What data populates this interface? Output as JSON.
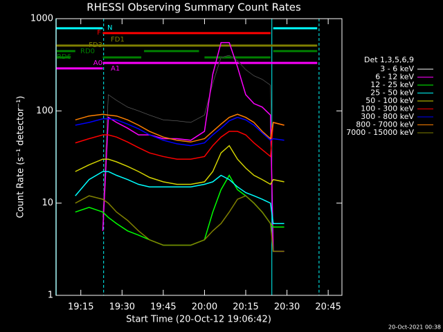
{
  "chart_data": {
    "type": "line",
    "title": "RHESSI Observing Summary Count Rates",
    "xlabel": "Start Time (20-Oct-12 19:06:42)",
    "ylabel": "Count Rate (s⁻¹ detector⁻¹)",
    "legend_title": "Det 1,3,5,6,9",
    "timestamp": "20-Oct-2021 00:38",
    "log_y": true,
    "xlim": [
      "19:06",
      "20:50"
    ],
    "ylim": [
      1,
      1000
    ],
    "xticks": [
      "19:15",
      "19:30",
      "19:45",
      "20:00",
      "20:15",
      "20:30",
      "20:45"
    ],
    "yticks": [
      1,
      10,
      100,
      1000
    ],
    "x": [
      "19:13",
      "19:18",
      "19:23",
      "19:25",
      "19:28",
      "19:32",
      "19:36",
      "19:40",
      "19:45",
      "19:50",
      "19:55",
      "20:00",
      "20:03",
      "20:06",
      "20:09",
      "20:12",
      "20:15",
      "20:18",
      "20:21",
      "20:24",
      "20:25",
      "20:29"
    ],
    "series": [
      {
        "name": "3 - 6 keV",
        "color": "#000000",
        "values": [
          null,
          null,
          7,
          150,
          130,
          110,
          100,
          90,
          80,
          78,
          75,
          90,
          200,
          380,
          400,
          350,
          280,
          240,
          220,
          190,
          3,
          3
        ]
      },
      {
        "name": "6 - 12 keV",
        "color": "#ff00ff",
        "values": [
          null,
          null,
          5,
          85,
          75,
          65,
          55,
          55,
          50,
          50,
          48,
          60,
          250,
          550,
          550,
          300,
          150,
          120,
          110,
          90,
          3,
          3
        ]
      },
      {
        "name": "12 - 25 keV",
        "color": "#00ff00",
        "values": [
          8,
          9,
          8,
          7,
          6,
          5,
          4.5,
          4,
          3.5,
          3.5,
          3.5,
          4,
          8,
          14,
          20,
          14,
          12,
          10,
          8,
          6,
          5.5,
          5.5
        ]
      },
      {
        "name": "25 - 50 keV",
        "color": "#00ffff",
        "values": [
          12,
          18,
          22,
          22,
          20,
          18,
          16,
          15,
          15,
          15,
          15,
          16,
          17,
          20,
          18,
          15,
          13,
          12,
          11,
          10,
          6,
          6
        ]
      },
      {
        "name": "50 - 100 keV",
        "color": "#d4d400",
        "values": [
          22,
          26,
          30,
          30,
          28,
          25,
          22,
          19,
          17,
          16,
          16,
          17,
          22,
          35,
          42,
          30,
          24,
          20,
          18,
          16,
          18,
          17
        ]
      },
      {
        "name": "100 - 300 keV",
        "color": "#ff0000",
        "values": [
          45,
          50,
          55,
          55,
          52,
          46,
          40,
          35,
          32,
          30,
          30,
          32,
          42,
          52,
          60,
          60,
          55,
          45,
          38,
          32,
          75,
          70
        ]
      },
      {
        "name": "300 - 800 keV",
        "color": "#0000ff",
        "values": [
          70,
          75,
          82,
          82,
          80,
          72,
          64,
          55,
          48,
          44,
          42,
          45,
          55,
          65,
          78,
          85,
          80,
          70,
          58,
          48,
          50,
          48
        ]
      },
      {
        "name": "800 - 7000 keV",
        "color": "#ff8000",
        "values": [
          80,
          88,
          92,
          90,
          88,
          80,
          70,
          60,
          52,
          48,
          46,
          50,
          60,
          72,
          85,
          92,
          85,
          75,
          60,
          50,
          75,
          70
        ]
      },
      {
        "name": "7000 - 15000 keV",
        "color": "#808000",
        "values": [
          10,
          12,
          11,
          10,
          8,
          6.5,
          5,
          4,
          3.5,
          3.5,
          3.5,
          4,
          5,
          6,
          8,
          11,
          12,
          10,
          8,
          6,
          3,
          3
        ]
      }
    ],
    "vlines": [
      {
        "x": "19:23:18",
        "color": "#00ffff",
        "style": "dashed"
      },
      {
        "x": "20:24:30",
        "color": "#00ffff",
        "style": "solid"
      },
      {
        "x": "20:41:40",
        "color": "#00ffff",
        "style": "dashed"
      }
    ],
    "flags": [
      {
        "label": "N",
        "color": "#00ffff",
        "level": 787,
        "segments": [
          [
            "19:06",
            "19:23"
          ],
          [
            "20:25",
            "20:41"
          ]
        ]
      },
      {
        "label": "F",
        "color": "#ff0000",
        "level": 697,
        "segments": [
          [
            "19:23",
            "20:24"
          ]
        ]
      },
      {
        "label": "FD1",
        "color": "#808000"
      },
      {
        "label": "FD3",
        "color": "#808000",
        "level": 511,
        "segments": [
          [
            "19:06",
            "20:41"
          ]
        ]
      },
      {
        "label": "RD0",
        "color": "#008000",
        "level": 445,
        "segments": [
          [
            "19:06",
            "19:13"
          ],
          [
            "19:38",
            "19:58"
          ],
          [
            "20:25",
            "20:41"
          ]
        ]
      },
      {
        "label": "RD6",
        "color": "#008000",
        "level": 380,
        "segments": [
          [
            "19:06",
            "19:11"
          ],
          [
            "19:23",
            "19:37"
          ],
          [
            "20:00",
            "20:24"
          ]
        ]
      },
      {
        "label": "A0",
        "color": "#ff00ff",
        "level": 289,
        "segments": [
          [
            "19:06",
            "19:23"
          ]
        ]
      },
      {
        "label": "A1",
        "color": "#ff00ff",
        "level": 331,
        "segments": [
          [
            "19:23",
            "20:41"
          ]
        ]
      }
    ]
  }
}
